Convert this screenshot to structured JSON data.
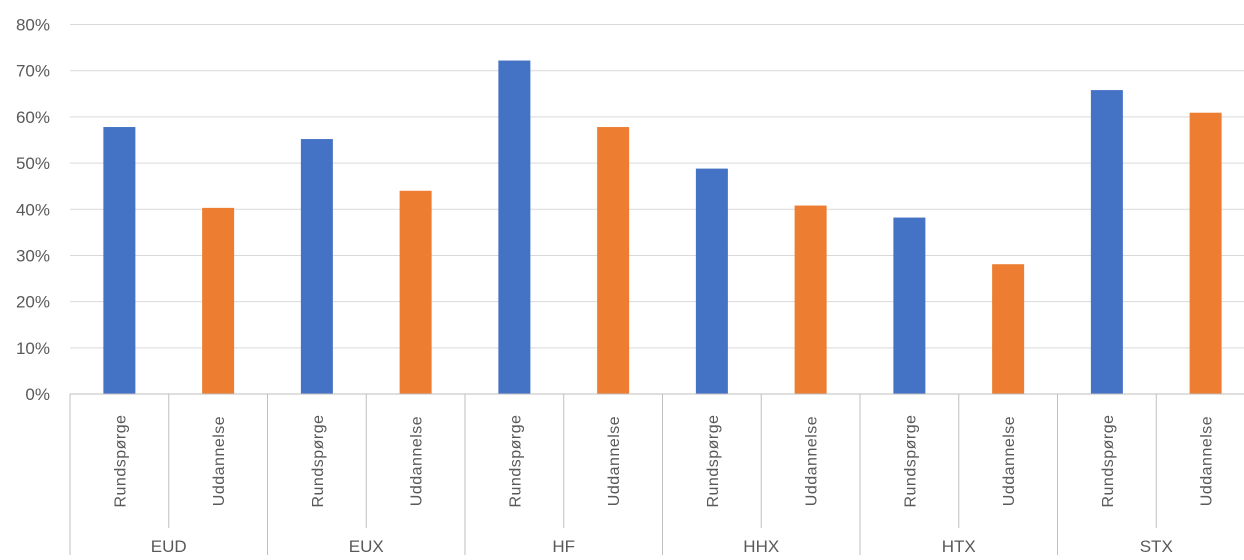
{
  "chart_data": {
    "type": "bar",
    "groups": [
      "EUD",
      "EUX",
      "HF",
      "HHX",
      "HTX",
      "STX"
    ],
    "subcategories": [
      "Rundspørge",
      "Uddannelse"
    ],
    "series": [
      {
        "values": [
          57.8,
          55.2,
          72.2,
          48.8,
          38.2,
          65.8
        ],
        "color": "#4472C4"
      },
      {
        "values": [
          40.3,
          44.0,
          57.8,
          40.8,
          28.1,
          60.9
        ],
        "color": "#ED7D31"
      }
    ],
    "yticks": [
      "0%",
      "10%",
      "20%",
      "30%",
      "40%",
      "50%",
      "60%",
      "70%",
      "80%"
    ],
    "ylim": [
      0,
      80
    ],
    "grid": true,
    "legend": "none"
  }
}
